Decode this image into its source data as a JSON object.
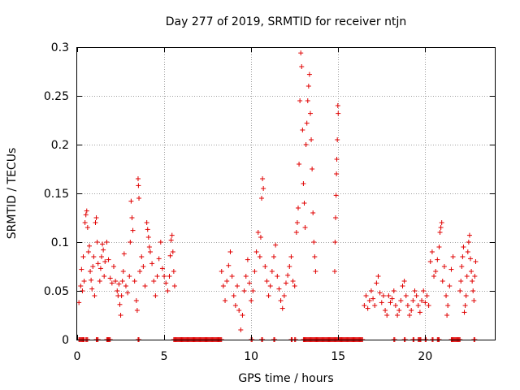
{
  "chart_data": {
    "type": "scatter",
    "title": "Day 277 of 2019, SRMTID for receiver ntjn",
    "xlabel": "GPS time / hours",
    "ylabel": "SRMTID / TECUs",
    "xlim": [
      0,
      24
    ],
    "ylim": [
      0,
      0.3
    ],
    "xticks": [
      0,
      5,
      10,
      15,
      20
    ],
    "yticks": [
      0,
      0.05,
      0.1,
      0.15,
      0.2,
      0.25,
      0.3
    ],
    "xtick_labels": [
      "0",
      "5",
      "10",
      "15",
      "20"
    ],
    "ytick_labels": [
      "0",
      "0.05",
      "0.1",
      "0.15",
      "0.2",
      "0.25",
      "0.3"
    ],
    "grid": true,
    "marker": "+",
    "marker_color": "#e00000",
    "series": [
      {
        "name": "SRMTID",
        "points": [
          [
            0.1,
            0.038
          ],
          [
            0.2,
            0.055
          ],
          [
            0.25,
            0.072
          ],
          [
            0.3,
            0.05
          ],
          [
            0.35,
            0.085
          ],
          [
            0.4,
            0.06
          ],
          [
            0.45,
            0.12
          ],
          [
            0.5,
            0.128
          ],
          [
            0.55,
            0.132
          ],
          [
            0.6,
            0.115
          ],
          [
            0.65,
            0.09
          ],
          [
            0.7,
            0.096
          ],
          [
            0.75,
            0.07
          ],
          [
            0.8,
            0.061
          ],
          [
            0.85,
            0.052
          ],
          [
            0.9,
            0.075
          ],
          [
            0.95,
            0.085
          ],
          [
            1.0,
            0.045
          ],
          [
            1.05,
            0.12
          ],
          [
            1.1,
            0.125
          ],
          [
            1.15,
            0.1
          ],
          [
            1.2,
            0.078
          ],
          [
            1.3,
            0.06
          ],
          [
            1.35,
            0.073
          ],
          [
            1.4,
            0.085
          ],
          [
            1.45,
            0.098
          ],
          [
            1.5,
            0.092
          ],
          [
            1.55,
            0.065
          ],
          [
            1.6,
            0.08
          ],
          [
            1.7,
            0.1
          ],
          [
            1.8,
            0.082
          ],
          [
            1.9,
            0.063
          ],
          [
            2.0,
            0.058
          ],
          [
            2.1,
            0.075
          ],
          [
            2.2,
            0.06
          ],
          [
            2.3,
            0.05
          ],
          [
            2.35,
            0.045
          ],
          [
            2.4,
            0.057
          ],
          [
            2.45,
            0.036
          ],
          [
            2.5,
            0.025
          ],
          [
            2.55,
            0.045
          ],
          [
            2.6,
            0.06
          ],
          [
            2.65,
            0.07
          ],
          [
            2.7,
            0.088
          ],
          [
            2.8,
            0.055
          ],
          [
            2.9,
            0.048
          ],
          [
            3.0,
            0.065
          ],
          [
            3.05,
            0.1
          ],
          [
            3.1,
            0.142
          ],
          [
            3.15,
            0.125
          ],
          [
            3.2,
            0.112
          ],
          [
            3.3,
            0.06
          ],
          [
            3.4,
            0.04
          ],
          [
            3.45,
            0.03
          ],
          [
            3.5,
            0.165
          ],
          [
            3.52,
            0.158
          ],
          [
            3.55,
            0.145
          ],
          [
            3.6,
            0.07
          ],
          [
            3.7,
            0.085
          ],
          [
            3.8,
            0.075
          ],
          [
            3.9,
            0.055
          ],
          [
            4.0,
            0.12
          ],
          [
            4.05,
            0.113
          ],
          [
            4.1,
            0.105
          ],
          [
            4.15,
            0.095
          ],
          [
            4.2,
            0.09
          ],
          [
            4.3,
            0.078
          ],
          [
            4.4,
            0.06
          ],
          [
            4.5,
            0.045
          ],
          [
            4.6,
            0.065
          ],
          [
            4.7,
            0.083
          ],
          [
            4.8,
            0.1
          ],
          [
            4.9,
            0.073
          ],
          [
            5.0,
            0.065
          ],
          [
            5.1,
            0.058
          ],
          [
            5.2,
            0.05
          ],
          [
            5.3,
            0.065
          ],
          [
            5.35,
            0.086
          ],
          [
            5.4,
            0.102
          ],
          [
            5.45,
            0.107
          ],
          [
            5.5,
            0.09
          ],
          [
            5.55,
            0.07
          ],
          [
            5.6,
            0.055
          ],
          [
            8.3,
            0.07
          ],
          [
            8.4,
            0.055
          ],
          [
            8.5,
            0.04
          ],
          [
            8.6,
            0.06
          ],
          [
            8.7,
            0.076
          ],
          [
            8.8,
            0.09
          ],
          [
            8.9,
            0.065
          ],
          [
            9.0,
            0.045
          ],
          [
            9.1,
            0.035
          ],
          [
            9.2,
            0.055
          ],
          [
            9.3,
            0.03
          ],
          [
            9.4,
            0.01
          ],
          [
            9.5,
            0.025
          ],
          [
            9.6,
            0.05
          ],
          [
            9.7,
            0.065
          ],
          [
            9.8,
            0.082
          ],
          [
            9.9,
            0.058
          ],
          [
            10.0,
            0.04
          ],
          [
            10.1,
            0.05
          ],
          [
            10.2,
            0.07
          ],
          [
            10.3,
            0.09
          ],
          [
            10.4,
            0.11
          ],
          [
            10.5,
            0.085
          ],
          [
            10.55,
            0.105
          ],
          [
            10.6,
            0.145
          ],
          [
            10.65,
            0.165
          ],
          [
            10.7,
            0.155
          ],
          [
            10.8,
            0.075
          ],
          [
            10.9,
            0.06
          ],
          [
            11.0,
            0.045
          ],
          [
            11.1,
            0.055
          ],
          [
            11.2,
            0.07
          ],
          [
            11.3,
            0.085
          ],
          [
            11.4,
            0.097
          ],
          [
            11.5,
            0.065
          ],
          [
            11.6,
            0.052
          ],
          [
            11.7,
            0.04
          ],
          [
            11.8,
            0.032
          ],
          [
            11.9,
            0.045
          ],
          [
            12.0,
            0.058
          ],
          [
            12.1,
            0.066
          ],
          [
            12.2,
            0.075
          ],
          [
            12.3,
            0.085
          ],
          [
            12.4,
            0.06
          ],
          [
            12.5,
            0.055
          ],
          [
            12.6,
            0.11
          ],
          [
            12.65,
            0.12
          ],
          [
            12.7,
            0.135
          ],
          [
            12.75,
            0.18
          ],
          [
            12.8,
            0.245
          ],
          [
            12.85,
            0.294
          ],
          [
            12.9,
            0.28
          ],
          [
            12.95,
            0.215
          ],
          [
            13.0,
            0.16
          ],
          [
            13.05,
            0.14
          ],
          [
            13.1,
            0.115
          ],
          [
            13.15,
            0.2
          ],
          [
            13.2,
            0.222
          ],
          [
            13.25,
            0.245
          ],
          [
            13.3,
            0.26
          ],
          [
            13.35,
            0.272
          ],
          [
            13.4,
            0.232
          ],
          [
            13.45,
            0.205
          ],
          [
            13.5,
            0.175
          ],
          [
            13.55,
            0.13
          ],
          [
            13.6,
            0.1
          ],
          [
            13.65,
            0.085
          ],
          [
            13.7,
            0.07
          ],
          [
            14.8,
            0.07
          ],
          [
            14.82,
            0.1
          ],
          [
            14.85,
            0.125
          ],
          [
            14.88,
            0.148
          ],
          [
            14.9,
            0.17
          ],
          [
            14.92,
            0.185
          ],
          [
            14.95,
            0.205
          ],
          [
            14.98,
            0.24
          ],
          [
            15.0,
            0.232
          ],
          [
            16.5,
            0.035
          ],
          [
            16.6,
            0.045
          ],
          [
            16.7,
            0.032
          ],
          [
            16.8,
            0.04
          ],
          [
            16.9,
            0.05
          ],
          [
            17.0,
            0.042
          ],
          [
            17.1,
            0.035
          ],
          [
            17.2,
            0.058
          ],
          [
            17.3,
            0.065
          ],
          [
            17.4,
            0.048
          ],
          [
            17.5,
            0.038
          ],
          [
            17.6,
            0.045
          ],
          [
            17.7,
            0.03
          ],
          [
            17.8,
            0.025
          ],
          [
            17.9,
            0.045
          ],
          [
            18.0,
            0.038
          ],
          [
            18.1,
            0.042
          ],
          [
            18.2,
            0.05
          ],
          [
            18.3,
            0.035
          ],
          [
            18.4,
            0.025
          ],
          [
            18.5,
            0.03
          ],
          [
            18.6,
            0.04
          ],
          [
            18.7,
            0.055
          ],
          [
            18.8,
            0.06
          ],
          [
            18.9,
            0.045
          ],
          [
            19.0,
            0.035
          ],
          [
            19.1,
            0.025
          ],
          [
            19.2,
            0.03
          ],
          [
            19.3,
            0.04
          ],
          [
            19.4,
            0.05
          ],
          [
            19.5,
            0.045
          ],
          [
            19.6,
            0.035
          ],
          [
            19.7,
            0.028
          ],
          [
            19.8,
            0.04
          ],
          [
            19.9,
            0.05
          ],
          [
            20.0,
            0.038
          ],
          [
            20.1,
            0.045
          ],
          [
            20.2,
            0.035
          ],
          [
            20.3,
            0.08
          ],
          [
            20.4,
            0.09
          ],
          [
            20.5,
            0.065
          ],
          [
            20.6,
            0.07
          ],
          [
            20.7,
            0.082
          ],
          [
            20.8,
            0.095
          ],
          [
            20.85,
            0.11
          ],
          [
            20.9,
            0.115
          ],
          [
            20.95,
            0.12
          ],
          [
            21.0,
            0.06
          ],
          [
            21.1,
            0.075
          ],
          [
            21.2,
            0.045
          ],
          [
            21.25,
            0.025
          ],
          [
            21.3,
            0.035
          ],
          [
            21.4,
            0.055
          ],
          [
            21.5,
            0.072
          ],
          [
            21.6,
            0.085
          ],
          [
            22.0,
            0.05
          ],
          [
            22.05,
            0.06
          ],
          [
            22.1,
            0.075
          ],
          [
            22.15,
            0.085
          ],
          [
            22.2,
            0.095
          ],
          [
            22.25,
            0.028
          ],
          [
            22.3,
            0.035
          ],
          [
            22.35,
            0.045
          ],
          [
            22.4,
            0.065
          ],
          [
            22.45,
            0.09
          ],
          [
            22.5,
            0.1
          ],
          [
            22.55,
            0.107
          ],
          [
            22.6,
            0.083
          ],
          [
            22.65,
            0.07
          ],
          [
            22.7,
            0.06
          ],
          [
            22.75,
            0.05
          ],
          [
            22.8,
            0.04
          ],
          [
            22.85,
            0.065
          ],
          [
            22.9,
            0.08
          ]
        ]
      }
    ],
    "zero_segments": [
      [
        0.1,
        0.4
      ],
      [
        0.5,
        0.6
      ],
      [
        1.1,
        1.2
      ],
      [
        1.7,
        1.9
      ],
      [
        3.5,
        3.55
      ],
      [
        5.55,
        8.3
      ],
      [
        10.0,
        10.05
      ],
      [
        10.6,
        10.65
      ],
      [
        11.3,
        11.35
      ],
      [
        12.3,
        12.35
      ],
      [
        12.5,
        12.55
      ],
      [
        13.0,
        16.4
      ],
      [
        18.2,
        18.25
      ],
      [
        18.8,
        18.85
      ],
      [
        19.3,
        19.35
      ],
      [
        19.6,
        19.75
      ],
      [
        20.0,
        20.05
      ],
      [
        20.4,
        20.45
      ],
      [
        20.7,
        20.8
      ],
      [
        21.5,
        22.0
      ],
      [
        22.8,
        22.85
      ]
    ]
  }
}
